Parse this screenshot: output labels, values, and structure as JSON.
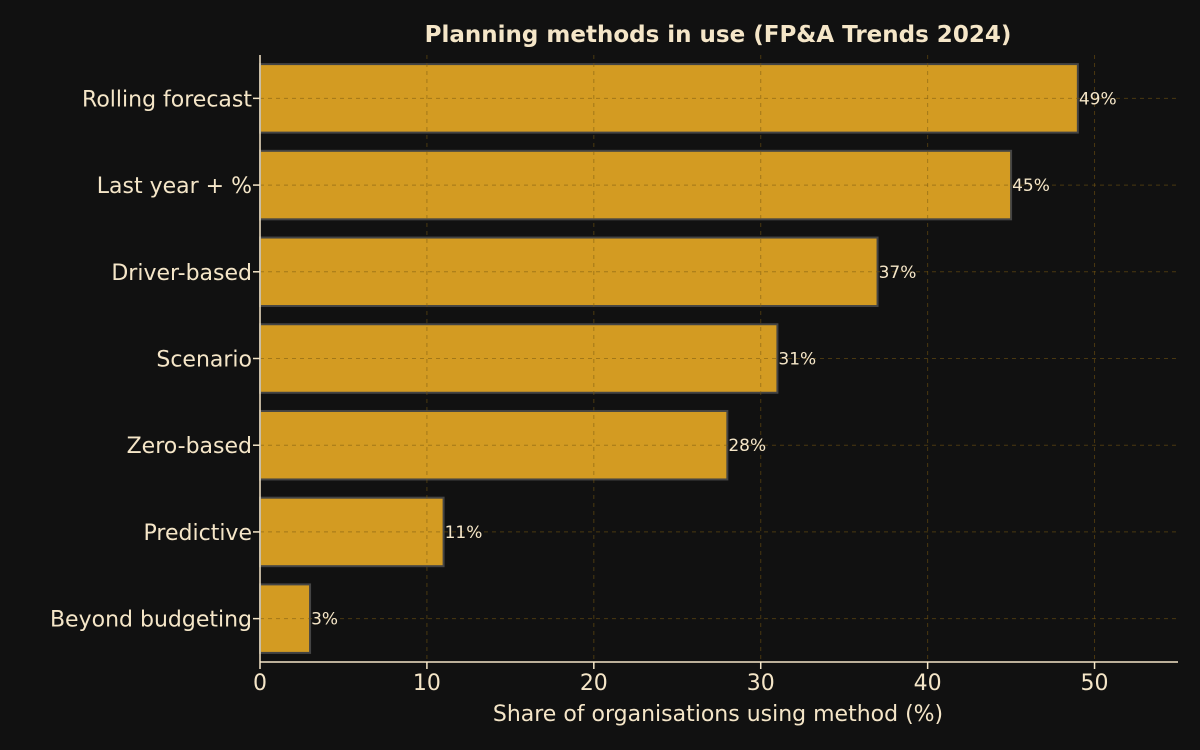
{
  "chart_data": {
    "type": "bar",
    "orientation": "horizontal",
    "title": "Planning methods in use (FP&A Trends 2024)",
    "xlabel": "Share of organisations using method (%)",
    "ylabel": "",
    "categories": [
      "Rolling forecast",
      "Last year + %",
      "Driver-based",
      "Scenario",
      "Zero-based",
      "Predictive",
      "Beyond budgeting"
    ],
    "values": [
      49,
      45,
      37,
      31,
      28,
      11,
      3
    ],
    "data_labels": [
      "49%",
      "45%",
      "37%",
      "31%",
      "28%",
      "11%",
      "3%"
    ],
    "xlim": [
      0,
      55
    ],
    "xticks": [
      0,
      10,
      20,
      30,
      40,
      50
    ],
    "grid": true,
    "colors": {
      "background": "#111111",
      "bar": "#d39b22",
      "bar_edge": "#444444",
      "text": "#f5e6c8",
      "grid": "#7a5a10"
    }
  }
}
